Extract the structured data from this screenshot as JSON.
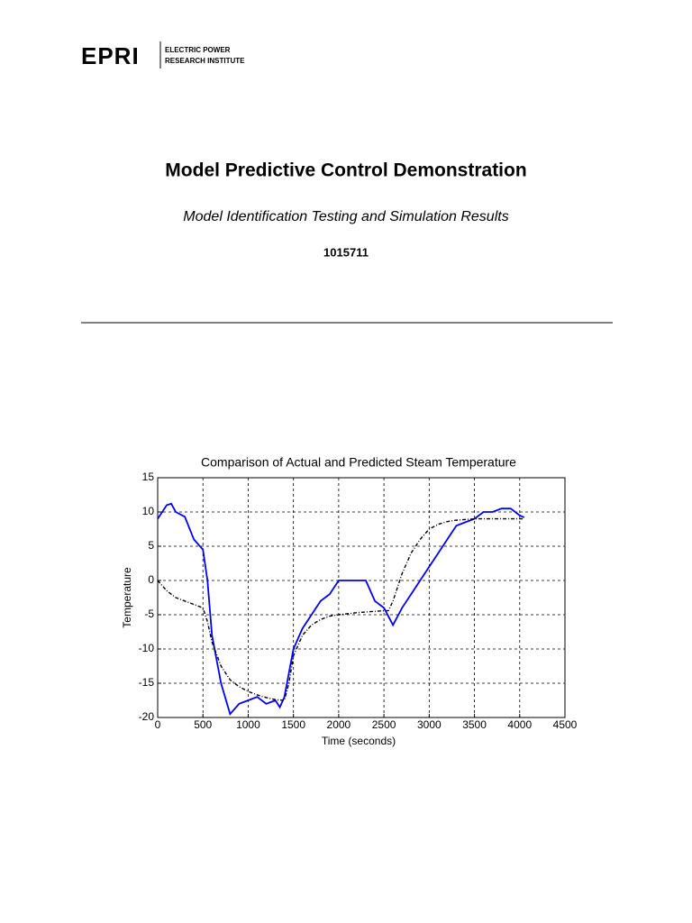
{
  "header": {
    "logo": "EPRI",
    "org_line1": "ELECTRIC POWER",
    "org_line2": "RESEARCH INSTITUTE"
  },
  "title": "Model Predictive Control Demonstration",
  "subtitle": "Model Identification Testing and Simulation Results",
  "report_number": "1015711",
  "chart_data": {
    "type": "line",
    "title": "Comparison of Actual and Predicted Steam Temperature",
    "x_label": "Time (seconds)",
    "y_label": "Temperature",
    "xlim": [
      0,
      4500
    ],
    "xticks": [
      0,
      500,
      1000,
      1500,
      2000,
      2500,
      3000,
      3500,
      4000,
      4500
    ],
    "ylim": [
      -20,
      15
    ],
    "yticks": [
      -20,
      -15,
      -10,
      -5,
      0,
      5,
      10,
      15
    ],
    "grid": true,
    "series": [
      {
        "color": "#0000ff",
        "dash": false,
        "x": [
          0,
          100,
          150,
          200,
          300,
          400,
          500,
          550,
          600,
          700,
          800,
          900,
          1000,
          1100,
          1200,
          1300,
          1350,
          1400,
          1500,
          1600,
          1700,
          1800,
          1900,
          2000,
          2100,
          2200,
          2300,
          2400,
          2500,
          2600,
          2700,
          2800,
          2900,
          3000,
          3100,
          3200,
          3300,
          3400,
          3500,
          3600,
          3700,
          3800,
          3900,
          4000,
          4050
        ],
        "values": [
          9,
          11,
          11.2,
          10,
          9.3,
          6,
          4.5,
          0,
          -8,
          -15,
          -19.5,
          -18,
          -17.5,
          -17,
          -18,
          -17.5,
          -18.5,
          -17,
          -10,
          -7,
          -5,
          -3,
          -2,
          0,
          0,
          0,
          0,
          -3,
          -4,
          -6.5,
          -4,
          -2,
          0,
          2,
          4,
          6,
          8,
          8.5,
          9,
          10,
          10,
          10.5,
          10.5,
          9.5,
          9.2
        ]
      },
      {
        "color": "#000000",
        "dash": true,
        "x": [
          0,
          100,
          200,
          300,
          400,
          500,
          550,
          600,
          700,
          800,
          900,
          1000,
          1100,
          1200,
          1300,
          1400,
          1450,
          1500,
          1600,
          1700,
          1800,
          1900,
          2000,
          2200,
          2400,
          2550,
          2600,
          2700,
          2800,
          2900,
          3000,
          3100,
          3200,
          3300,
          3500,
          3700,
          4000,
          4050
        ],
        "values": [
          0,
          -1.5,
          -2.5,
          -3,
          -3.5,
          -4,
          -6,
          -9,
          -12.5,
          -14.5,
          -15.5,
          -16.2,
          -16.7,
          -17.1,
          -17.4,
          -17.5,
          -15,
          -11,
          -8,
          -6.5,
          -5.7,
          -5.2,
          -5,
          -4.7,
          -4.5,
          -4.4,
          -3,
          1,
          4,
          6,
          7.5,
          8.2,
          8.6,
          8.8,
          9,
          9,
          9,
          9
        ]
      }
    ]
  }
}
